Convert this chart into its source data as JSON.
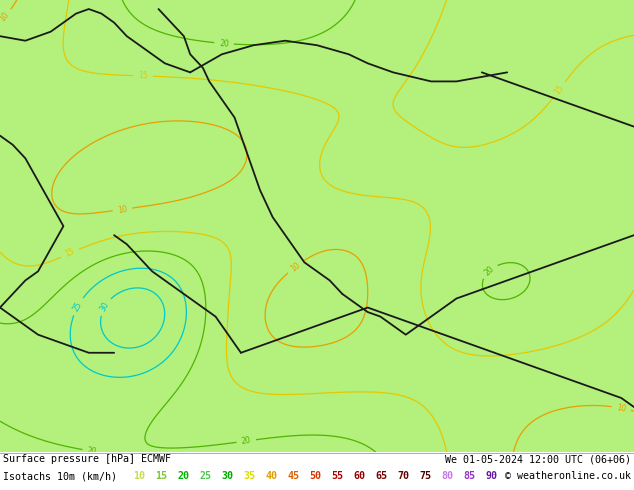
{
  "title_line1": "Surface pressure [hPa] ECMWF",
  "title_line2": "We 01-05-2024 12:00 UTC (06+06)",
  "legend_label": "Isotachs 10m (km/h)",
  "copyright": "© weatheronline.co.uk",
  "isotach_values": [
    10,
    15,
    20,
    25,
    30,
    35,
    40,
    45,
    50,
    55,
    60,
    65,
    70,
    75,
    80,
    85,
    90
  ],
  "isotach_colors": [
    "#c8dc50",
    "#78c832",
    "#00b400",
    "#50c850",
    "#00aa00",
    "#dcdc00",
    "#dca000",
    "#dc6400",
    "#dc3200",
    "#b40000",
    "#960000",
    "#780000",
    "#640000",
    "#500000",
    "#c878e6",
    "#9632c8",
    "#6414aa"
  ],
  "bg_color": "#b4f07c",
  "fig_width": 6.34,
  "fig_height": 4.9,
  "dpi": 100,
  "seed": 2024,
  "contour_iso_low_color": "#00c8c8",
  "contour_iso_mid_color": "#00aa00",
  "contour_iso_high_color": "#ffa000",
  "contour_iso_veryhigh_color": "#0000dc",
  "contour_pressure_color": "#404040",
  "border_color": "#1a1a1a"
}
